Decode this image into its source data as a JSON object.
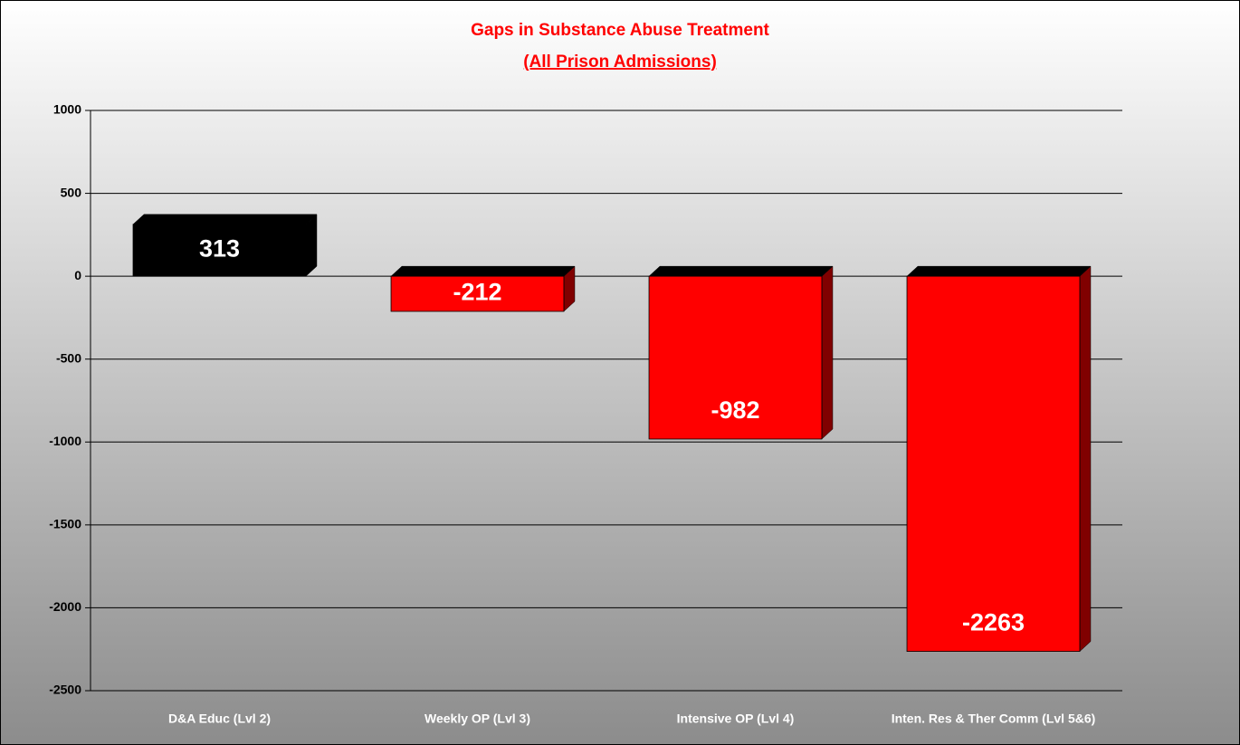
{
  "chart_data": {
    "type": "bar",
    "title": "Gaps in Substance Abuse Treatment",
    "subtitle": "(All Prison Admissions)",
    "categories": [
      "D&A Educ (Lvl 2)",
      "Weekly OP (Lvl 3)",
      "Intensive OP (Lvl 4)",
      "Inten. Res & Ther Comm (Lvl 5&6)"
    ],
    "values": [
      313,
      -212,
      -982,
      -2263
    ],
    "colors": [
      "#000000",
      "#ff0000",
      "#ff0000",
      "#ff0000"
    ],
    "ylim": [
      -2500,
      1000
    ],
    "yticks": [
      -2500,
      -2000,
      -1500,
      -1000,
      -500,
      0,
      500,
      1000
    ],
    "grid": true
  }
}
